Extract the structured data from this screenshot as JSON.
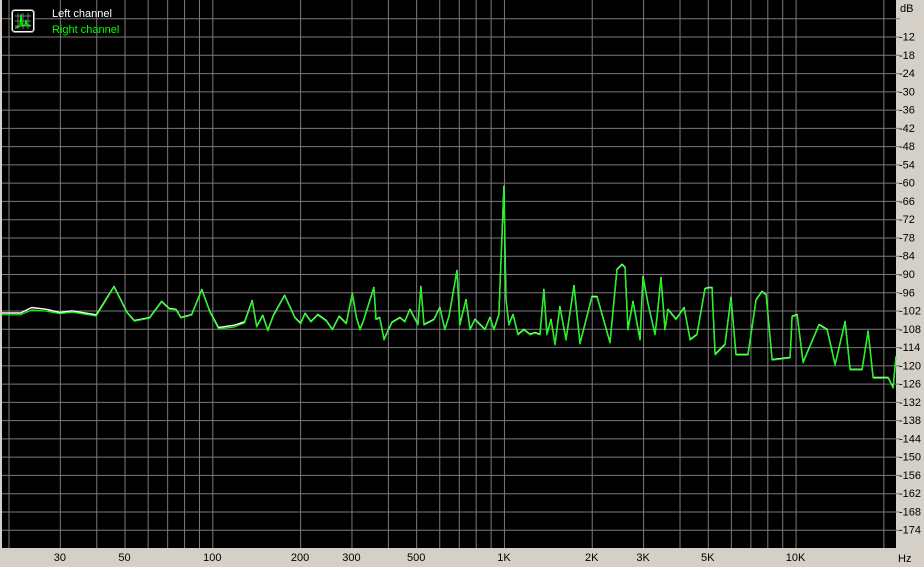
{
  "chart_data": {
    "type": "line",
    "title": "",
    "xlabel": "Hz",
    "ylabel": "dB",
    "xscale": "log",
    "xlim": [
      19,
      22100
    ],
    "ylim": [
      -180,
      0
    ],
    "grid": true,
    "legend_position": "top-left",
    "background": "#000000",
    "grid_color": "#7a7a7a",
    "x_ticks": [
      {
        "value": 30,
        "label": "30"
      },
      {
        "value": 50,
        "label": "50"
      },
      {
        "value": 100,
        "label": "100"
      },
      {
        "value": 200,
        "label": "200"
      },
      {
        "value": 300,
        "label": "300"
      },
      {
        "value": 500,
        "label": "500"
      },
      {
        "value": 1000,
        "label": "1K"
      },
      {
        "value": 2000,
        "label": "2K"
      },
      {
        "value": 3000,
        "label": "3K"
      },
      {
        "value": 5000,
        "label": "5K"
      },
      {
        "value": 10000,
        "label": "10K"
      }
    ],
    "y_ticks": [
      {
        "value": -12,
        "label": "-12"
      },
      {
        "value": -18,
        "label": "-18"
      },
      {
        "value": -24,
        "label": "-24"
      },
      {
        "value": -30,
        "label": "-30"
      },
      {
        "value": -36,
        "label": "-36"
      },
      {
        "value": -42,
        "label": "-42"
      },
      {
        "value": -48,
        "label": "-48"
      },
      {
        "value": -54,
        "label": "-54"
      },
      {
        "value": -60,
        "label": "-60"
      },
      {
        "value": -66,
        "label": "-66"
      },
      {
        "value": -72,
        "label": "-72"
      },
      {
        "value": -78,
        "label": "-78"
      },
      {
        "value": -84,
        "label": "-84"
      },
      {
        "value": -90,
        "label": "-90"
      },
      {
        "value": -96,
        "label": "-96"
      },
      {
        "value": -102,
        "label": "-102"
      },
      {
        "value": -108,
        "label": "-108"
      },
      {
        "value": -114,
        "label": "-114"
      },
      {
        "value": -120,
        "label": "-120"
      },
      {
        "value": -126,
        "label": "-126"
      },
      {
        "value": -132,
        "label": "-132"
      },
      {
        "value": -138,
        "label": "-138"
      },
      {
        "value": -144,
        "label": "-144"
      },
      {
        "value": -150,
        "label": "-150"
      },
      {
        "value": -156,
        "label": "-156"
      },
      {
        "value": -162,
        "label": "-162"
      },
      {
        "value": -168,
        "label": "-168"
      },
      {
        "value": -174,
        "label": "-174"
      }
    ],
    "x": [
      19,
      22,
      24,
      27,
      30,
      33,
      40,
      46,
      51,
      54,
      61,
      67,
      71,
      75,
      78,
      85,
      92,
      98,
      105,
      119,
      129,
      137,
      142,
      149,
      155,
      162,
      177,
      192,
      201,
      208,
      218,
      230,
      246,
      258,
      272,
      288,
      302,
      312,
      321,
      329,
      358,
      364,
      375,
      388,
      413,
      440,
      457,
      476,
      507,
      519,
      532,
      575,
      603,
      627,
      648,
      690,
      706,
      741,
      765,
      795,
      861,
      895,
      924,
      961,
      1000,
      1016,
      1040,
      1074,
      1117,
      1171,
      1228,
      1277,
      1329,
      1371,
      1404,
      1450,
      1496,
      1556,
      1632,
      1738,
      1823,
      2004,
      2085,
      2310,
      2442,
      2540,
      2601,
      2664,
      2771,
      2928,
      2998,
      3119,
      3296,
      3349,
      3456,
      3567,
      3652,
      3890,
      4146,
      4348,
      4592,
      4893,
      5050,
      5171,
      5296,
      5730,
      6007,
      6250,
      6871,
      7320,
      7674,
      7922,
      8306,
      9575,
      9727,
      10118,
      10610,
      12040,
      12823,
      13664,
      14782,
      15381,
      16911,
      17736,
      18446,
      20765,
      21605,
      22100
    ],
    "series": [
      {
        "name": "Left channel",
        "color": "#ffffff",
        "values": [
          -103,
          -103,
          -101.2,
          -101.8,
          -102.8,
          -102.3,
          -103.6,
          -94.3,
          -102.8,
          -105.5,
          -104.5,
          -99.2,
          -101.5,
          -101.8,
          -104.5,
          -103.5,
          -95.3,
          -102.5,
          -107.8,
          -107,
          -105.9,
          -98.9,
          -107.4,
          -103.8,
          -108.7,
          -103.8,
          -97.2,
          -104.5,
          -106.4,
          -103.1,
          -105.8,
          -103.5,
          -105.5,
          -108.4,
          -104.1,
          -106.4,
          -96.6,
          -104.5,
          -108.4,
          -105.8,
          -94.6,
          -105,
          -104.5,
          -111.7,
          -106,
          -104.5,
          -105.8,
          -101.8,
          -106.8,
          -94.3,
          -106.8,
          -105.1,
          -101.2,
          -108.4,
          -104.1,
          -89,
          -106.8,
          -98.6,
          -108.4,
          -105.1,
          -108.4,
          -104.5,
          -108.4,
          -103.5,
          -61.4,
          -98.6,
          -106.8,
          -103.5,
          -110,
          -108.4,
          -110,
          -109.4,
          -110,
          -95.3,
          -110,
          -105.1,
          -113.3,
          -100.9,
          -111.7,
          -94,
          -113,
          -97.6,
          -97.6,
          -112.7,
          -88.7,
          -87,
          -88,
          -108.4,
          -99.2,
          -111.7,
          -91,
          -99.9,
          -110,
          -104.5,
          -91.3,
          -108.4,
          -101.8,
          -105,
          -101.2,
          -111.7,
          -110,
          -95,
          -94.6,
          -94.6,
          -116.6,
          -113.3,
          -97.9,
          -116.6,
          -116.6,
          -98.6,
          -95.9,
          -96.9,
          -118.3,
          -117.6,
          -104.1,
          -103.5,
          -119.2,
          -106.8,
          -108.4,
          -120,
          -105.8,
          -121.5,
          -121.5,
          -109,
          -124.2,
          -124.2,
          -127.5,
          -117.3
        ]
      },
      {
        "name": "Right channel",
        "color": "#00ff00",
        "values": [
          -103.4,
          -103.4,
          -101.8,
          -102.2,
          -103,
          -102.5,
          -103.8,
          -94.3,
          -102.8,
          -105.5,
          -104.5,
          -99.2,
          -101.5,
          -101.8,
          -104.5,
          -103.5,
          -95.3,
          -102.5,
          -108,
          -107.4,
          -106.1,
          -98.9,
          -107.4,
          -103.8,
          -108.7,
          -103.8,
          -97.2,
          -104.5,
          -106.4,
          -103.1,
          -105.8,
          -103.5,
          -105.5,
          -108.4,
          -104.1,
          -106.4,
          -96.6,
          -104.5,
          -108.4,
          -105.8,
          -94.6,
          -105,
          -104.5,
          -111.7,
          -106,
          -104.5,
          -105.8,
          -101.8,
          -106.8,
          -94.3,
          -106.8,
          -105.1,
          -101.2,
          -108.4,
          -104.1,
          -89,
          -106.8,
          -98.6,
          -108.4,
          -105.1,
          -108.4,
          -104.5,
          -108.4,
          -103.5,
          -61.4,
          -98.6,
          -106.8,
          -103.5,
          -110,
          -108.4,
          -110,
          -109.4,
          -110,
          -95.3,
          -110,
          -105.1,
          -113.3,
          -100.9,
          -111.7,
          -94,
          -113,
          -97.6,
          -97.6,
          -112.7,
          -88.7,
          -87,
          -88,
          -108.4,
          -99.2,
          -111.7,
          -91,
          -99.9,
          -110,
          -104.5,
          -91.3,
          -108.4,
          -101.8,
          -105,
          -101.2,
          -111.7,
          -110,
          -95,
          -94.6,
          -94.6,
          -116.6,
          -113.3,
          -97.9,
          -116.6,
          -116.6,
          -98.6,
          -95.9,
          -96.9,
          -118.3,
          -117.6,
          -104.1,
          -103.5,
          -119.2,
          -106.8,
          -108.4,
          -120,
          -105.8,
          -121.5,
          -121.5,
          -109,
          -124.2,
          -124.2,
          -127.5,
          -117.3
        ]
      }
    ]
  },
  "legend": {
    "icon": "spectrum-icon",
    "left_label": "Left channel",
    "right_label": "Right channel"
  }
}
